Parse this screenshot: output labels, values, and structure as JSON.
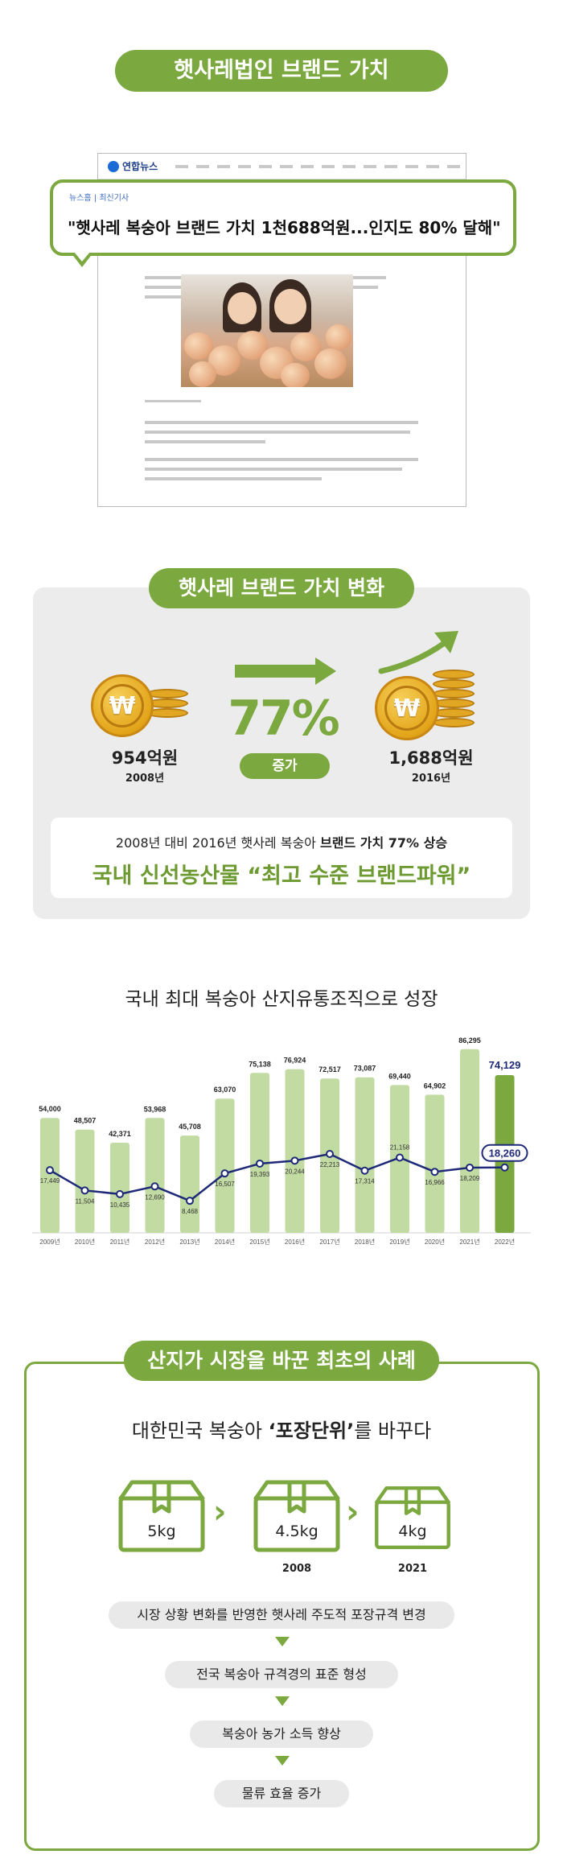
{
  "section1": {
    "title": "햇사레법인 브랜드 가치",
    "news": {
      "logo": "연합뉴스",
      "breadcrumb": "뉴스홈 | 최신기사",
      "headline": "\"햇사레 복숭아 브랜드 가치 1천688억원...인지도 80% 달해\""
    }
  },
  "section2": {
    "title": "햇사레 브랜드 가치 변화",
    "before": {
      "value": "954억원",
      "year": "2008년"
    },
    "after": {
      "value": "1,688억원",
      "year": "2016년"
    },
    "growth_pct": "77%",
    "growth_label": "증가",
    "coin_symbol": "₩",
    "note": {
      "line1_prefix": "2008년 대비 2016년 햇사레 복숭아 ",
      "line1_bold": "브랜드 가치 77% 상승",
      "line2": "국내 신선농산물 “최고 수준 브랜드파워”"
    },
    "colors": {
      "accent": "#7ba83f",
      "coin": "#e3a51a"
    }
  },
  "section3": {
    "title": "국내 최대 복숭아 산지유통조직으로 성장"
  },
  "chart_data": {
    "type": "bar",
    "categories": [
      "2009년",
      "2010년",
      "2011년",
      "2012년",
      "2013년",
      "2014년",
      "2015년",
      "2016년",
      "2017년",
      "2018년",
      "2019년",
      "2020년",
      "2021년",
      "2022년"
    ],
    "series": [
      {
        "values": [
          54000,
          48507,
          42371,
          53968,
          45708,
          63070,
          75138,
          76924,
          72517,
          73087,
          69440,
          64902,
          86295,
          74129
        ],
        "color": "#c2dba3",
        "highlight_last_color": "#7ba83f"
      },
      {
        "values": [
          17449,
          11504,
          10435,
          12690,
          8468,
          16507,
          19393,
          20244,
          22213,
          17314,
          21158,
          16966,
          18209,
          18260
        ],
        "color": "#1e2a78"
      }
    ],
    "labels_bar": [
      "54,000",
      "48,507",
      "42,371",
      "53,968",
      "45,708",
      "63,070",
      "75,138",
      "76,924",
      "72,517",
      "73,087",
      "69,440",
      "64,902",
      "86,295",
      "74,129"
    ],
    "labels_line": [
      "17,449",
      "11,504",
      "10,435",
      "12,690",
      "8,468",
      "16,507",
      "19,393",
      "20,244",
      "22,213",
      "17,314",
      "21,158",
      "16,966",
      "18,209",
      "18,260"
    ],
    "ylim": [
      0,
      90000
    ],
    "grid": false
  },
  "section4": {
    "title": "산지가 시장을 바꾼 최초의 사례",
    "heading_prefix": "대한민국 복숭아 ",
    "heading_bold": "‘포장단위’",
    "heading_suffix": "를 바꾸다",
    "boxes": [
      {
        "label": "5kg",
        "year": ""
      },
      {
        "label": "4.5kg",
        "year": "2008"
      },
      {
        "label": "4kg",
        "year": "2021"
      }
    ],
    "chevron": "›",
    "steps": [
      "시장 상황 변화를 반영한 햇사레 주도적 포장규격 변경",
      "전국 복숭아 규격경의 표준 형성",
      "복숭아 농가 소득 향상",
      "물류 효율 증가"
    ]
  }
}
